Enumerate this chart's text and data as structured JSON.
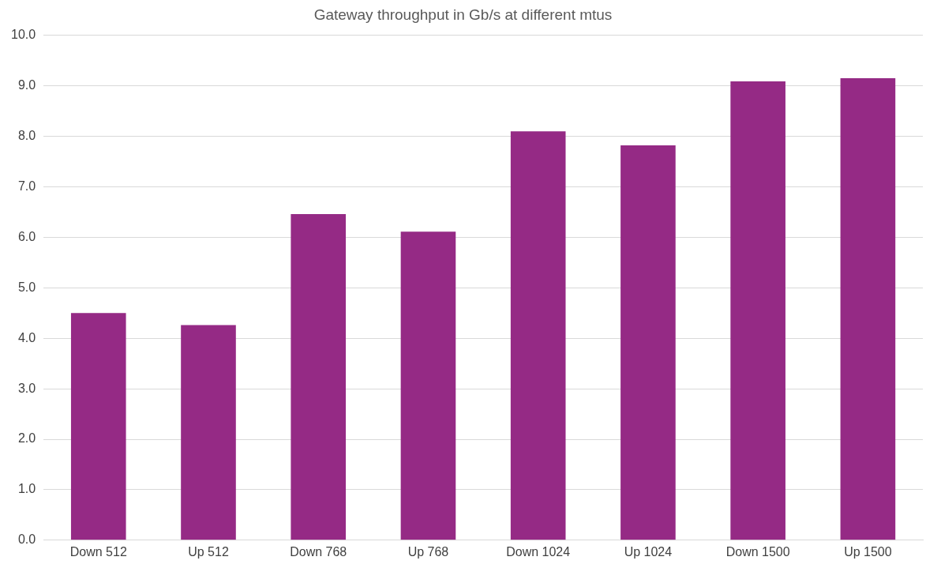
{
  "chart_data": {
    "type": "bar",
    "title": "Gateway throughput in Gb/s at different mtus",
    "categories": [
      "Down 512",
      "Up 512",
      "Down 768",
      "Up 768",
      "Down 1024",
      "Up 1024",
      "Down 1500",
      "Up 1500"
    ],
    "values": [
      4.5,
      4.26,
      6.46,
      6.11,
      8.1,
      7.82,
      9.09,
      9.15
    ],
    "color": "#952a85",
    "ylim": [
      0,
      10
    ],
    "yticks": [
      {
        "value": 0,
        "label": "0.0"
      },
      {
        "value": 1,
        "label": "1.0"
      },
      {
        "value": 2,
        "label": "2.0"
      },
      {
        "value": 3,
        "label": "3.0"
      },
      {
        "value": 4,
        "label": "4.0"
      },
      {
        "value": 5,
        "label": "5.0"
      },
      {
        "value": 6,
        "label": "6.0"
      },
      {
        "value": 7,
        "label": "7.0"
      },
      {
        "value": 8,
        "label": "8.0"
      },
      {
        "value": 9,
        "label": "9.0"
      },
      {
        "value": 10,
        "label": "10.0"
      }
    ],
    "grid": "y",
    "legend": false
  }
}
